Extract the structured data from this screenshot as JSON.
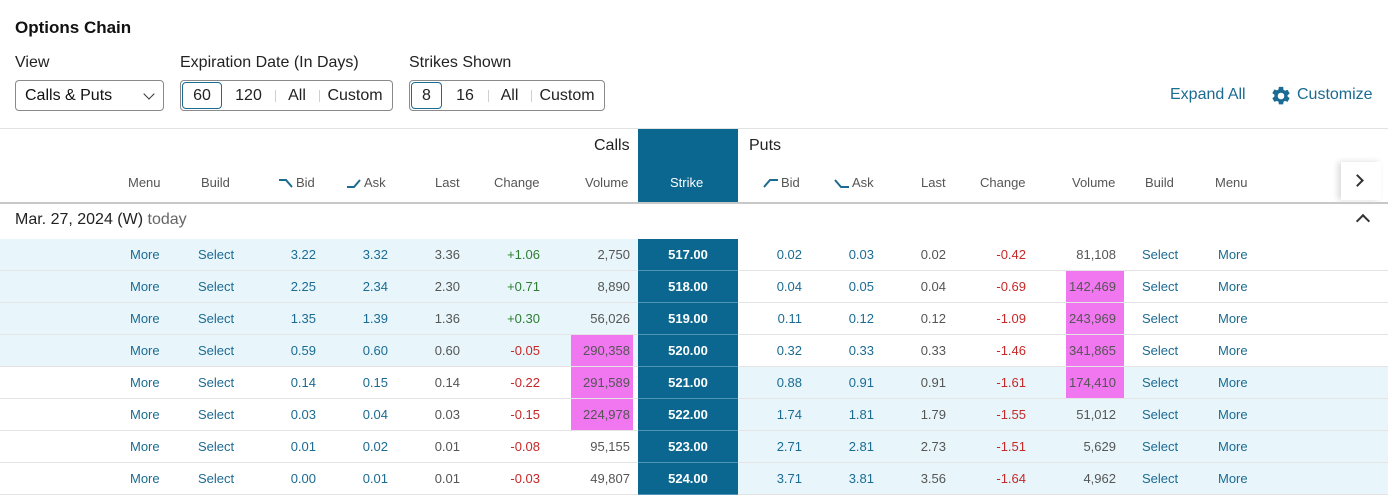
{
  "page": {
    "title": "Options Chain"
  },
  "controls": {
    "view_label": "View",
    "view_value": "Calls & Puts",
    "expiration_label": "Expiration Date (In Days)",
    "expiration_options": [
      "60",
      "120",
      "All",
      "Custom"
    ],
    "expiration_selected": "60",
    "strikes_label": "Strikes Shown",
    "strikes_options": [
      "8",
      "16",
      "All",
      "Custom"
    ],
    "strikes_selected": "8",
    "expand_all": "Expand All",
    "customize": "Customize"
  },
  "table": {
    "calls_label": "Calls",
    "puts_label": "Puts",
    "call_headers": {
      "menu": "Menu",
      "build": "Build",
      "bid": "Bid",
      "ask": "Ask",
      "last": "Last",
      "change": "Change",
      "volume": "Volume"
    },
    "strike_header": "Strike",
    "put_headers": {
      "bid": "Bid",
      "ask": "Ask",
      "last": "Last",
      "change": "Change",
      "volume": "Volume",
      "build": "Build",
      "menu": "Menu"
    },
    "expiry": {
      "date": "Mar. 27, 2024 (W)",
      "note": "today"
    },
    "rows": [
      {
        "strike": "517.00",
        "call": {
          "menu": "More",
          "build": "Select",
          "bid": "3.22",
          "ask": "3.32",
          "last": "3.36",
          "change": "+1.06",
          "volume": "2,750",
          "volume_highlight": false
        },
        "put": {
          "bid": "0.02",
          "ask": "0.03",
          "last": "0.02",
          "change": "-0.42",
          "volume": "81,108",
          "volume_highlight": false,
          "build": "Select",
          "menu": "More"
        },
        "call_itm": true,
        "put_itm": false
      },
      {
        "strike": "518.00",
        "call": {
          "menu": "More",
          "build": "Select",
          "bid": "2.25",
          "ask": "2.34",
          "last": "2.30",
          "change": "+0.71",
          "volume": "8,890",
          "volume_highlight": false
        },
        "put": {
          "bid": "0.04",
          "ask": "0.05",
          "last": "0.04",
          "change": "-0.69",
          "volume": "142,469",
          "volume_highlight": true,
          "build": "Select",
          "menu": "More"
        },
        "call_itm": true,
        "put_itm": false
      },
      {
        "strike": "519.00",
        "call": {
          "menu": "More",
          "build": "Select",
          "bid": "1.35",
          "ask": "1.39",
          "last": "1.36",
          "change": "+0.30",
          "volume": "56,026",
          "volume_highlight": false
        },
        "put": {
          "bid": "0.11",
          "ask": "0.12",
          "last": "0.12",
          "change": "-1.09",
          "volume": "243,969",
          "volume_highlight": true,
          "build": "Select",
          "menu": "More"
        },
        "call_itm": true,
        "put_itm": false
      },
      {
        "strike": "520.00",
        "call": {
          "menu": "More",
          "build": "Select",
          "bid": "0.59",
          "ask": "0.60",
          "last": "0.60",
          "change": "-0.05",
          "volume": "290,358",
          "volume_highlight": true
        },
        "put": {
          "bid": "0.32",
          "ask": "0.33",
          "last": "0.33",
          "change": "-1.46",
          "volume": "341,865",
          "volume_highlight": true,
          "build": "Select",
          "menu": "More"
        },
        "call_itm": true,
        "put_itm": false
      },
      {
        "strike": "521.00",
        "call": {
          "menu": "More",
          "build": "Select",
          "bid": "0.14",
          "ask": "0.15",
          "last": "0.14",
          "change": "-0.22",
          "volume": "291,589",
          "volume_highlight": true
        },
        "put": {
          "bid": "0.88",
          "ask": "0.91",
          "last": "0.91",
          "change": "-1.61",
          "volume": "174,410",
          "volume_highlight": true,
          "build": "Select",
          "menu": "More"
        },
        "call_itm": false,
        "put_itm": true
      },
      {
        "strike": "522.00",
        "call": {
          "menu": "More",
          "build": "Select",
          "bid": "0.03",
          "ask": "0.04",
          "last": "0.03",
          "change": "-0.15",
          "volume": "224,978",
          "volume_highlight": true
        },
        "put": {
          "bid": "1.74",
          "ask": "1.81",
          "last": "1.79",
          "change": "-1.55",
          "volume": "51,012",
          "volume_highlight": false,
          "build": "Select",
          "menu": "More"
        },
        "call_itm": false,
        "put_itm": true
      },
      {
        "strike": "523.00",
        "call": {
          "menu": "More",
          "build": "Select",
          "bid": "0.01",
          "ask": "0.02",
          "last": "0.01",
          "change": "-0.08",
          "volume": "95,155",
          "volume_highlight": false
        },
        "put": {
          "bid": "2.71",
          "ask": "2.81",
          "last": "2.73",
          "change": "-1.51",
          "volume": "5,629",
          "volume_highlight": false,
          "build": "Select",
          "menu": "More"
        },
        "call_itm": false,
        "put_itm": true
      },
      {
        "strike": "524.00",
        "call": {
          "menu": "More",
          "build": "Select",
          "bid": "0.00",
          "ask": "0.01",
          "last": "0.01",
          "change": "-0.03",
          "volume": "49,807",
          "volume_highlight": false
        },
        "put": {
          "bid": "3.71",
          "ask": "3.81",
          "last": "3.56",
          "change": "-1.64",
          "volume": "4,962",
          "volume_highlight": false,
          "build": "Select",
          "menu": "More"
        },
        "call_itm": false,
        "put_itm": true
      }
    ]
  },
  "icons": {
    "customize": "gear-icon",
    "next": "chevron-right-icon",
    "collapse": "chevron-up-icon",
    "bid_ask": "sort-hook-icon"
  },
  "colors": {
    "accent": "#1b6b93",
    "strike_bg": "#0b6790",
    "itm_bg": "#e8f6fb",
    "volume_highlight": "#f077f0",
    "positive": "#2e7d32",
    "negative": "#c62828"
  }
}
